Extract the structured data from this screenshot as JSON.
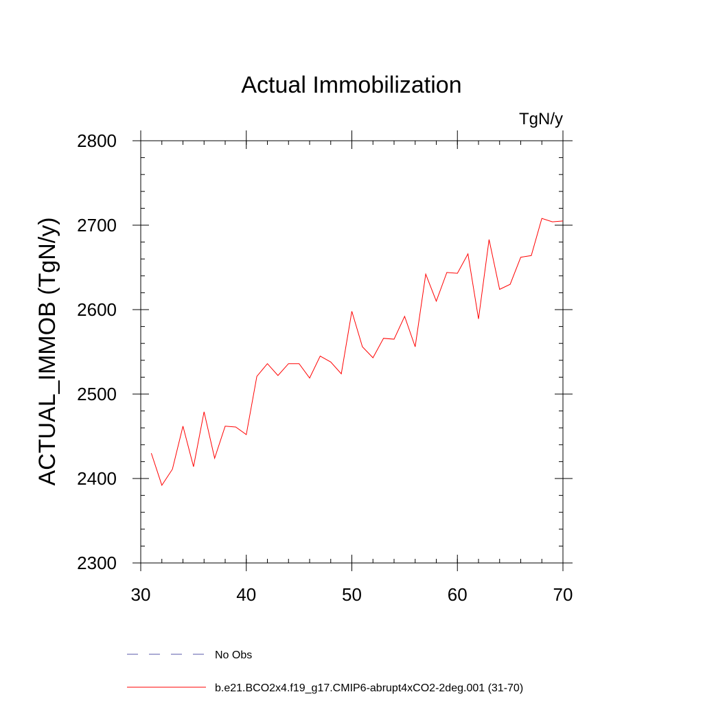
{
  "chart_data": {
    "type": "line",
    "title": "Actual Immobilization",
    "units": "TgN/y",
    "ylabel": "ACTUAL_IMMOB  (TgN/y)",
    "xlabel": "",
    "xlim": [
      30,
      70
    ],
    "ylim": [
      2300,
      2800
    ],
    "x_ticks": [
      30,
      40,
      50,
      60,
      70
    ],
    "y_ticks": [
      2300,
      2400,
      2500,
      2600,
      2700,
      2800
    ],
    "grid": false,
    "legend_position": "bottom",
    "colors": {
      "obs": "#5555aa",
      "model": "#ff0000"
    },
    "series": [
      {
        "name": "No Obs",
        "style": "dashed",
        "x": [],
        "values": []
      },
      {
        "name": "b.e21.BCO2x4.f19_g17.CMIP6-abrupt4xCO2-2deg.001 (31-70)",
        "style": "solid",
        "x": [
          31,
          32,
          33,
          34,
          35,
          36,
          37,
          38,
          39,
          40,
          41,
          42,
          43,
          44,
          45,
          46,
          47,
          48,
          49,
          50,
          51,
          52,
          53,
          54,
          55,
          56,
          57,
          58,
          59,
          60,
          61,
          62,
          63,
          64,
          65,
          66,
          67,
          68,
          69,
          70
        ],
        "values": [
          2430,
          2392,
          2411,
          2462,
          2414,
          2479,
          2424,
          2462,
          2461,
          2452,
          2521,
          2536,
          2522,
          2536,
          2536,
          2519,
          2545,
          2538,
          2524,
          2598,
          2556,
          2543,
          2566,
          2565,
          2592,
          2556,
          2642,
          2610,
          2644,
          2643,
          2666,
          2589,
          2683,
          2624,
          2630,
          2662,
          2664,
          2708,
          2704,
          2705
        ]
      }
    ]
  }
}
